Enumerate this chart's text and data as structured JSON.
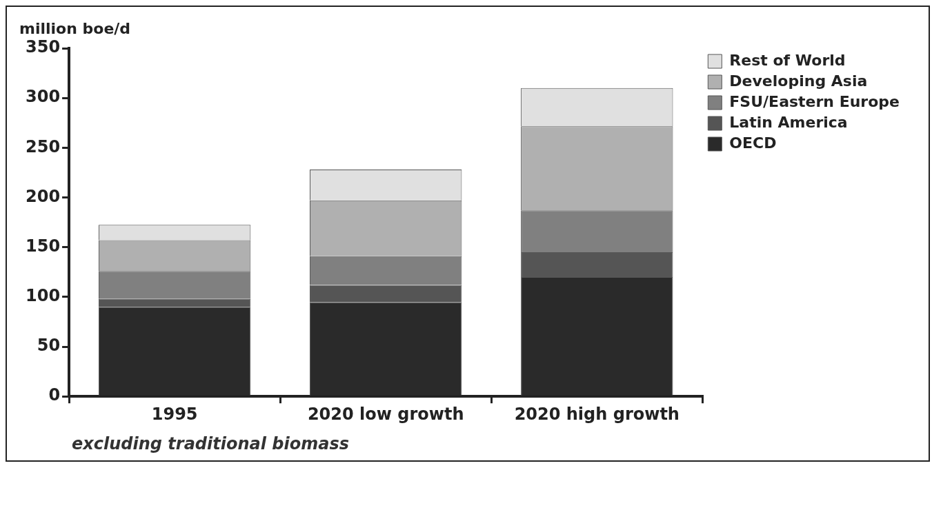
{
  "chart_data": {
    "type": "bar",
    "stacked": true,
    "ylabel": "million boe/d",
    "categories": [
      "1995",
      "2020 low growth",
      "2020 high growth"
    ],
    "series": [
      {
        "name": "OECD",
        "color": "#2a2a2a",
        "values": [
          90,
          94.5,
          120
        ]
      },
      {
        "name": "Latin America",
        "color": "#555555",
        "values": [
          8,
          17.5,
          25
        ]
      },
      {
        "name": "FSU/Eastern Europe",
        "color": "#808080",
        "values": [
          28,
          29,
          42
        ]
      },
      {
        "name": "Developing Asia",
        "color": "#b0b0b0",
        "values": [
          31,
          56,
          84.5
        ]
      },
      {
        "name": "Rest of World",
        "color": "#e0e0e0",
        "values": [
          15.5,
          31,
          38.5
        ]
      }
    ],
    "ylim": [
      0,
      350
    ],
    "yticks": [
      0,
      50,
      100,
      150,
      200,
      250,
      300,
      350
    ],
    "grid": false,
    "legend": "top right",
    "annotations": [
      "excluding traditional biomass"
    ]
  }
}
